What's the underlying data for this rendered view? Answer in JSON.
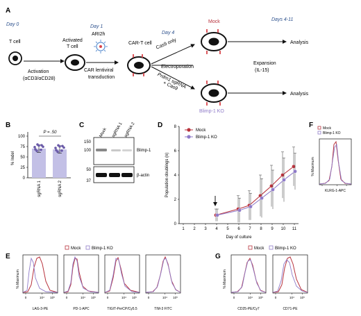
{
  "panels": {
    "A": "A",
    "B": "B",
    "C": "C",
    "D": "D",
    "E": "E",
    "F": "F",
    "G": "G"
  },
  "schema": {
    "day0": "Day 0",
    "day1": "Day 1",
    "day4": "Day 4",
    "day411": "Days 4-11",
    "tcell": "T cell",
    "activated": "Activated",
    "tcell2": "T cell",
    "activation": "Activation",
    "activation_reagent": "(αCD3/αCD28)",
    "ari2h": "ARI2h",
    "car_lenti1": "CAR lentiviral",
    "car_lenti2": "transduction",
    "cart": "CAR-T cell",
    "cas9only": "Cas9 only",
    "electroporation": "Electroporation",
    "prdm1_1": "Prdm1 sgRNA",
    "prdm1_2": "+ Cas9",
    "mock": "Mock",
    "ko": "Blimp-1 KO",
    "expansion1": "Expansion",
    "expansion2": "(IL-15)",
    "analysis": "Analysis"
  },
  "panelB": {
    "ylabel": "% Indel",
    "pval": "P = .50",
    "yticks": [
      "0",
      "25",
      "50",
      "75",
      "100"
    ],
    "categories": [
      "sgRNA 1",
      "sgRNA 2"
    ],
    "values": [
      70,
      68
    ]
  },
  "panelC": {
    "lanes": [
      "Mock",
      "sgRNA 1",
      "sgRNA 2"
    ],
    "markers": [
      "150",
      "100",
      "50",
      "37"
    ],
    "bands": [
      "Blimp-1",
      "β-actin"
    ]
  },
  "panelD": {
    "ylabel": "Population doublings (n)",
    "xlabel": "Day of culture",
    "legend": [
      "Mock",
      "Blimp-1 KO"
    ]
  },
  "panelE": {
    "ylabel": "% Maximum",
    "legend": [
      "Mock",
      "Blimp-1 KO"
    ],
    "xlabels": [
      "LAG-3-PE",
      "PD-1-APC",
      "TIGIT-PerCP/Cy5.5",
      "TIM-3 FITC"
    ]
  },
  "panelF": {
    "ylabel": "% Maximum",
    "legend": [
      "Mock",
      "Blimp-1 KO"
    ],
    "xlabel": "KLRG-1-APC"
  },
  "panelG": {
    "ylabel": "% Maximum",
    "legend": [
      "Mock",
      "Blimp-1 KO"
    ],
    "xlabels": [
      "CD25-PE/Cy7",
      "CD71-PE"
    ]
  },
  "flow_ticks": {
    "t0": "0",
    "t4": "10⁴",
    "t5": "10⁵"
  },
  "chart_data": {
    "type": "line",
    "title": "",
    "xlabel": "Day of culture",
    "ylabel": "Population doublings (n)",
    "x": [
      1,
      2,
      3,
      4,
      5,
      6,
      7,
      8,
      9,
      10,
      11
    ],
    "xlim": [
      1,
      11
    ],
    "ylim": [
      0,
      8
    ],
    "yticks": [
      0,
      2,
      4,
      6,
      8
    ],
    "annotation": "arrow at day 4",
    "series": [
      {
        "name": "Mock",
        "color": "#b8323c",
        "x": [
          4,
          6,
          7,
          8,
          9,
          10,
          11
        ],
        "values": [
          0.7,
          1.2,
          1.5,
          2.3,
          3.1,
          4.0,
          4.7
        ],
        "err": [
          0.5,
          1.1,
          1.2,
          1.7,
          1.7,
          1.9,
          1.6
        ]
      },
      {
        "name": "Blimp-1 KO",
        "color": "#8e7ac8",
        "x": [
          4,
          6,
          7,
          8,
          9,
          10,
          11
        ],
        "values": [
          0.7,
          1.1,
          1.4,
          2.1,
          2.8,
          3.6,
          4.3
        ],
        "err": [
          0.5,
          1.0,
          1.1,
          1.6,
          1.6,
          1.8,
          1.5
        ]
      }
    ]
  },
  "colors": {
    "mock": "#b8323c",
    "ko": "#8e7ac8",
    "bar": "#c3c0e6"
  }
}
